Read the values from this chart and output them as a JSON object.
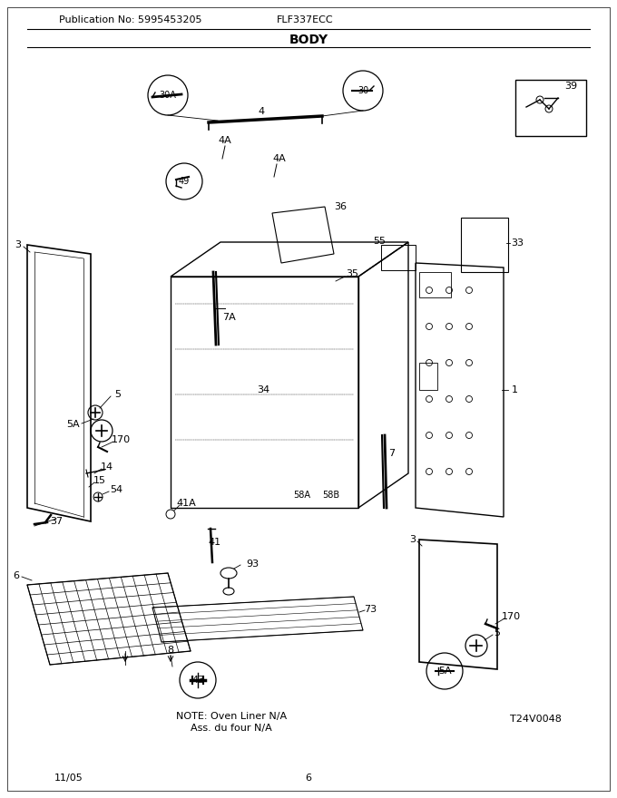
{
  "title": "BODY",
  "pub_no": "Publication No: 5995453205",
  "model": "FLF337ECC",
  "diagram_ref": "T24V0048",
  "note_line1": "NOTE: Oven Liner N/A",
  "note_line2": "Ass. du four N/A",
  "date": "11/05",
  "page": "6",
  "bg_color": "#ffffff",
  "line_color": "#000000"
}
